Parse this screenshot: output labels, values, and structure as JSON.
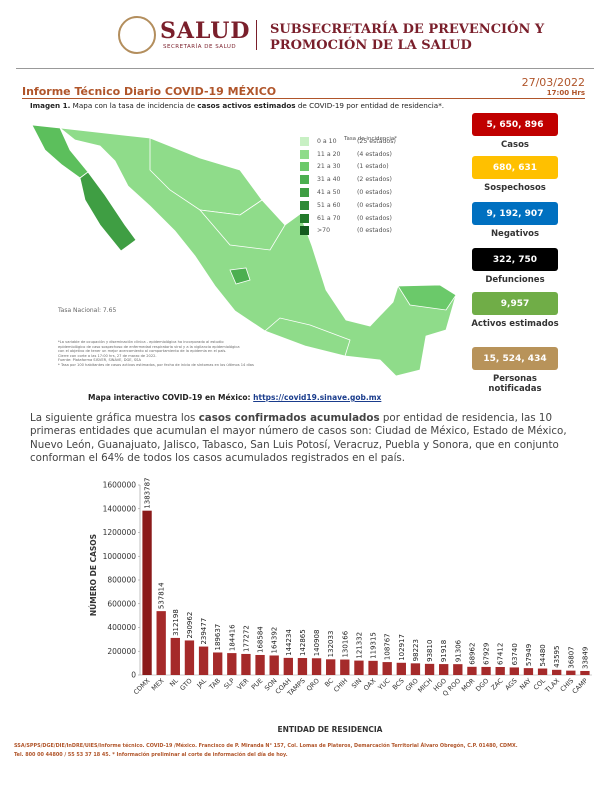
{
  "header": {
    "logo": "SALUD",
    "logo_sub": "SECRETARÍA DE SALUD",
    "title_line1": "SUBSECRETARÍA DE PREVENCIÓN Y",
    "title_line2": "PROMOCIÓN DE LA SALUD"
  },
  "report": {
    "title": "Informe Técnico Diario COVID-19 MÉXICO",
    "date": "27/03/2022",
    "time": "17:00 Hrs"
  },
  "caption": {
    "lead": "Imagen 1.",
    "text1": " Mapa con la tasa de incidencia de ",
    "bold": "casos activos estimados",
    "text2": " de COVID-19 por entidad de residencia*."
  },
  "map": {
    "legend_title": "Tasa de incidencia*",
    "legend": [
      {
        "range": "0 a 10",
        "count": "(25 estados)"
      },
      {
        "range": "11 a 20",
        "count": "(4 estados)"
      },
      {
        "range": "21 a 30",
        "count": "(1 estado)"
      },
      {
        "range": "31 a 40",
        "count": "(2 estados)"
      },
      {
        "range": "41 a 50",
        "count": "(0 estados)"
      },
      {
        "range": "51 a 60",
        "count": "(0 estados)"
      },
      {
        "range": "61 a 70",
        "count": "(0 estados)"
      },
      {
        "range": ">70",
        "count": "(0 estados)"
      }
    ],
    "national_rate": "Tasa Nacional: 7.65",
    "notes": [
      "*La variable de ocupación y diseminación clínica - epidemiológica ha incorporado al estudio",
      "epidemiológico de caso sospechoso de enfermedad respiratoria viral y a la vigilancia epidemiológica",
      "con el objetivo de tener un mejor acercamiento al comportamiento de la epidemia en el país.",
      "Cierre con corte a las 17:00 hrs, 27 de marzo de 2022.",
      "Fuente: Plataforma SISVER, SINAVE, DGE, SSA",
      "* Tasa por 100 habitantes de casos activos estimados, por fecha de inicio de síntomas en los últimos 14 días"
    ],
    "link_label": "Mapa interactivo COVID-19 en México: ",
    "link": "https://covid19.sinave.gob.mx"
  },
  "stats": [
    {
      "value": "5, 650, 896",
      "label": "Casos"
    },
    {
      "value": "680, 631",
      "label": "Sospechosos"
    },
    {
      "value": "9, 192, 907",
      "label": "Negativos"
    },
    {
      "value": "322, 750",
      "label": "Defunciones"
    },
    {
      "value": "9,957",
      "label": "Activos estimados"
    },
    {
      "value": "15, 524, 434",
      "label": "Personas notificadas"
    }
  ],
  "paragraph": {
    "text1": "La siguiente gráfica muestra los ",
    "bold": "casos confirmados acumulados",
    "text2": " por entidad de residencia, las 10 primeras entidades que acumulan el mayor número de casos son: Ciudad de México, Estado de México, Nuevo León, Guanajuato, Jalisco, Tabasco, San Luis Potosí, Veracruz, Puebla y Sonora, que en conjunto conforman el 64% de todos los casos acumulados registrados en el país."
  },
  "chart_data": {
    "type": "bar",
    "xlabel": "ENTIDAD DE RESIDENCIA",
    "ylabel": "NÚMERO DE CASOS",
    "color": "#a52a2a",
    "categories": [
      "CDMX",
      "MEX",
      "NL",
      "GTO",
      "JAL",
      "TAB",
      "SLP",
      "VER",
      "PUE",
      "SON",
      "COAH",
      "TAMPS",
      "QRO",
      "BC",
      "CHIH",
      "SIN",
      "OAX",
      "YUC",
      "BCS",
      "GRO",
      "MICH",
      "HGO",
      "Q ROO",
      "MOR",
      "DGO",
      "ZAC",
      "AGS",
      "NAY",
      "COL",
      "TLAX",
      "CHIS",
      "CAMP"
    ],
    "values": [
      1383787,
      537814,
      312198,
      290962,
      239477,
      189637,
      184416,
      177272,
      168584,
      164392,
      144234,
      142865,
      140908,
      132033,
      130166,
      121332,
      119315,
      108767,
      102917,
      98223,
      93810,
      91918,
      91306,
      68962,
      67929,
      67412,
      63740,
      57949,
      54480,
      43595,
      36807,
      33849
    ],
    "ylim": [
      0,
      1600000
    ],
    "yticks": [
      0,
      200000,
      400000,
      600000,
      800000,
      1000000,
      1200000,
      1400000,
      1600000
    ]
  },
  "footer": {
    "line1": "SSA/SPPS/DGE/DIE/InDRE/UIES/Informe técnico. COVID-19 /México. Francisco de P. Miranda N° 157, Col. Lomas de Plateros, Demarcación Territorial Álvaro Obregón, C.P. 01480, CDMX.",
    "line2": "Tel. 800 00 44800 / 55 53 37 18 45. * Información preliminar al corte de información del día de hoy."
  }
}
